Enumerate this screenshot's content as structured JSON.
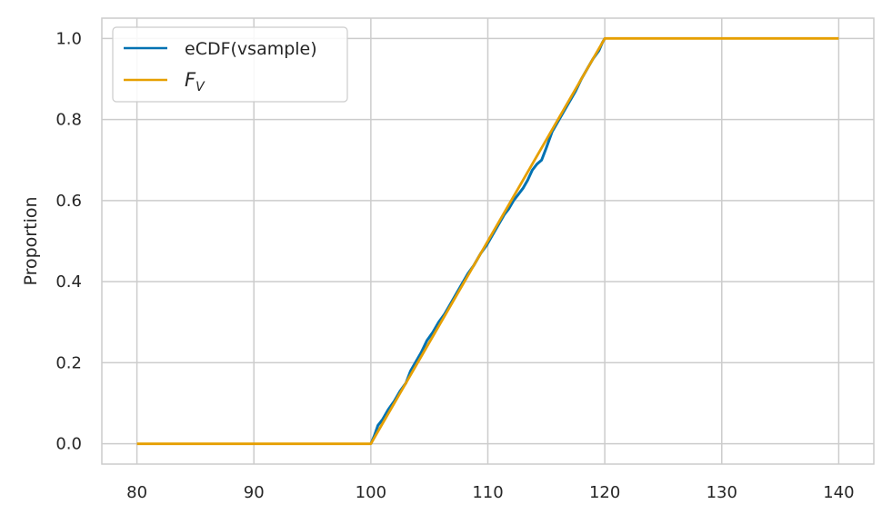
{
  "chart_data": {
    "type": "line",
    "xlabel": "",
    "ylabel": "Proportion",
    "xlim": [
      77,
      143
    ],
    "ylim": [
      -0.05,
      1.05
    ],
    "xticks": [
      80,
      90,
      100,
      110,
      120,
      130,
      140
    ],
    "yticks": [
      0.0,
      0.2,
      0.4,
      0.6,
      0.8,
      1.0
    ],
    "xtick_labels": [
      "80",
      "90",
      "100",
      "110",
      "120",
      "130",
      "140"
    ],
    "ytick_labels": [
      "0.0",
      "0.2",
      "0.4",
      "0.6",
      "0.8",
      "1.0"
    ],
    "grid": true,
    "legend_position": "top-left",
    "series": [
      {
        "name": "eCDF(vsample)",
        "color": "#0072B2",
        "x": [
          100.0,
          100.3,
          100.6,
          101.0,
          101.5,
          102.0,
          102.5,
          103.0,
          103.4,
          103.8,
          104.3,
          104.8,
          105.3,
          105.8,
          106.3,
          106.8,
          107.3,
          107.8,
          108.3,
          108.8,
          109.4,
          109.9,
          110.4,
          110.9,
          111.4,
          111.8,
          112.2,
          112.6,
          113.0,
          113.4,
          113.8,
          114.2,
          114.6,
          115.0,
          115.5,
          116.0,
          116.5,
          117.0,
          117.5,
          118.0,
          118.5,
          119.0,
          119.5,
          119.8,
          120.0
        ],
        "y": [
          0.0,
          0.02,
          0.045,
          0.06,
          0.085,
          0.105,
          0.13,
          0.15,
          0.18,
          0.2,
          0.225,
          0.255,
          0.275,
          0.3,
          0.32,
          0.345,
          0.37,
          0.395,
          0.42,
          0.44,
          0.47,
          0.49,
          0.515,
          0.54,
          0.565,
          0.58,
          0.6,
          0.615,
          0.63,
          0.65,
          0.675,
          0.69,
          0.7,
          0.73,
          0.77,
          0.795,
          0.82,
          0.845,
          0.87,
          0.9,
          0.925,
          0.95,
          0.97,
          0.99,
          1.0
        ]
      },
      {
        "name": "F_V",
        "color": "#E69F00",
        "x": [
          80,
          100,
          120,
          140
        ],
        "y": [
          0.0,
          0.0,
          1.0,
          1.0
        ]
      }
    ]
  },
  "legend": {
    "ecdf_label": "eCDF(vsample)",
    "fv_base": "F",
    "fv_sub": "V"
  }
}
